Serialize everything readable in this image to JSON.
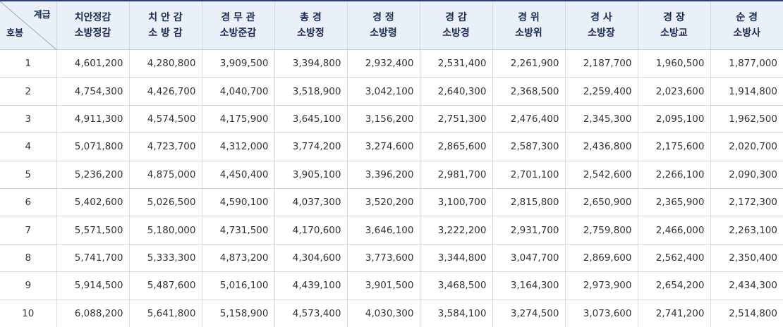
{
  "header": {
    "corner_top": "계급",
    "corner_bottom": "호봉",
    "columns": [
      {
        "line1": "치안정감",
        "line2": "소방정감"
      },
      {
        "line1": "치 안 감",
        "line2": "소 방 감"
      },
      {
        "line1": "경 무 관",
        "line2": "소방준감"
      },
      {
        "line1": "총 경",
        "line2": "소방정"
      },
      {
        "line1": "경 정",
        "line2": "소방령"
      },
      {
        "line1": "경 감",
        "line2": "소방경"
      },
      {
        "line1": "경 위",
        "line2": "소방위"
      },
      {
        "line1": "경 사",
        "line2": "소방장"
      },
      {
        "line1": "경 장",
        "line2": "소방교"
      },
      {
        "line1": "순 경",
        "line2": "소방사"
      }
    ]
  },
  "rows": [
    {
      "step": "1",
      "values": [
        "4,601,200",
        "4,280,800",
        "3,909,500",
        "3,394,800",
        "2,932,400",
        "2,531,400",
        "2,261,900",
        "2,187,700",
        "1,960,500",
        "1,877,000"
      ]
    },
    {
      "step": "2",
      "values": [
        "4,754,300",
        "4,426,700",
        "4,040,700",
        "3,518,900",
        "3,042,100",
        "2,640,300",
        "2,368,500",
        "2,259,400",
        "2,023,600",
        "1,914,800"
      ]
    },
    {
      "step": "3",
      "values": [
        "4,911,300",
        "4,574,500",
        "4,175,900",
        "3,645,100",
        "3,156,200",
        "2,751,300",
        "2,476,400",
        "2,345,300",
        "2,095,100",
        "1,962,500"
      ]
    },
    {
      "step": "4",
      "values": [
        "5,071,800",
        "4,723,700",
        "4,312,000",
        "3,774,200",
        "3,274,600",
        "2,865,600",
        "2,587,300",
        "2,436,800",
        "2,175,600",
        "2,020,700"
      ]
    },
    {
      "step": "5",
      "values": [
        "5,236,200",
        "4,875,000",
        "4,450,400",
        "3,905,100",
        "3,396,200",
        "2,981,700",
        "2,701,100",
        "2,542,600",
        "2,266,100",
        "2,090,300"
      ]
    },
    {
      "step": "6",
      "values": [
        "5,402,600",
        "5,026,500",
        "4,590,100",
        "4,037,300",
        "3,520,200",
        "3,100,700",
        "2,815,800",
        "2,650,900",
        "2,365,900",
        "2,172,300"
      ]
    },
    {
      "step": "7",
      "values": [
        "5,571,500",
        "5,180,000",
        "4,731,500",
        "4,170,600",
        "3,646,100",
        "3,222,200",
        "2,931,700",
        "2,759,800",
        "2,466,000",
        "2,263,100"
      ]
    },
    {
      "step": "8",
      "values": [
        "5,741,700",
        "5,333,300",
        "4,873,200",
        "4,304,600",
        "3,773,600",
        "3,344,800",
        "3,047,700",
        "2,869,600",
        "2,562,400",
        "2,350,400"
      ]
    },
    {
      "step": "9",
      "values": [
        "5,914,500",
        "5,487,600",
        "5,016,100",
        "4,439,100",
        "3,901,500",
        "3,468,500",
        "3,164,300",
        "2,973,900",
        "2,654,200",
        "2,434,300"
      ]
    },
    {
      "step": "10",
      "values": [
        "6,088,200",
        "5,641,800",
        "5,158,900",
        "4,573,400",
        "4,030,300",
        "3,584,100",
        "3,274,500",
        "3,073,600",
        "2,741,200",
        "2,514,800"
      ]
    }
  ]
}
